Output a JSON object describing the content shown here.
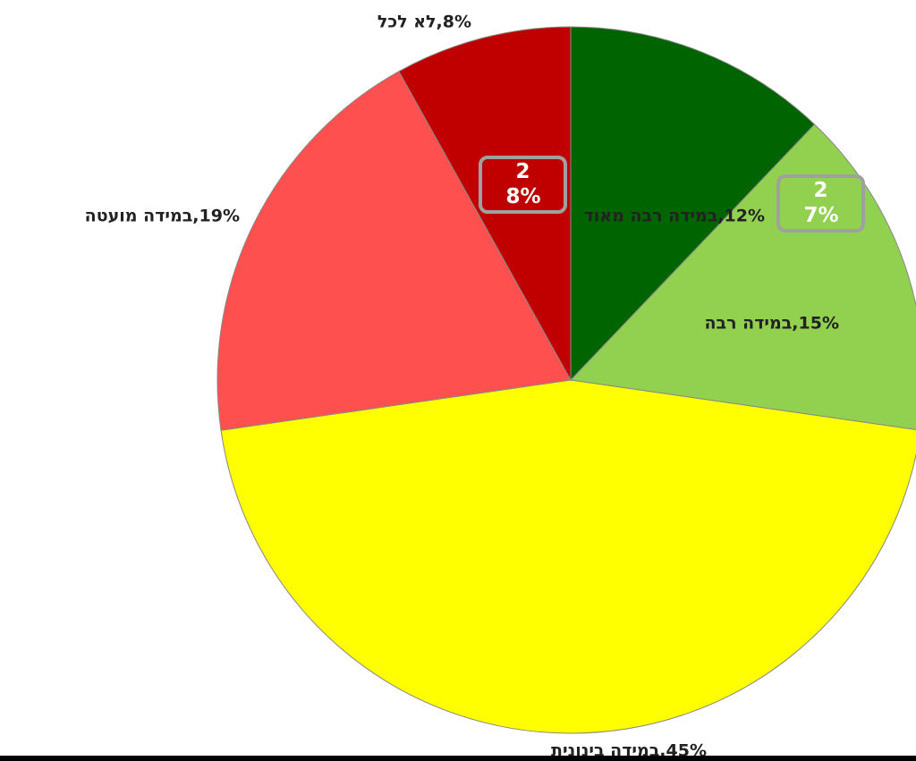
{
  "chart_data": {
    "type": "pie",
    "values": [
      12,
      15,
      45,
      19,
      8
    ],
    "value_labels": [
      "דואמ הבר הדימב,12%",
      "הבר הדימב,15%",
      "תינוניב הדימב,45%",
      "הטעומ הדימב,19%",
      "לכל אל,8%"
    ],
    "colors": [
      "#006400",
      "#92d050",
      "#ffff00",
      "#ff5050",
      "#c00000"
    ],
    "annotations": [
      {
        "text": "28%"
      },
      {
        "text": "27%"
      }
    ]
  }
}
